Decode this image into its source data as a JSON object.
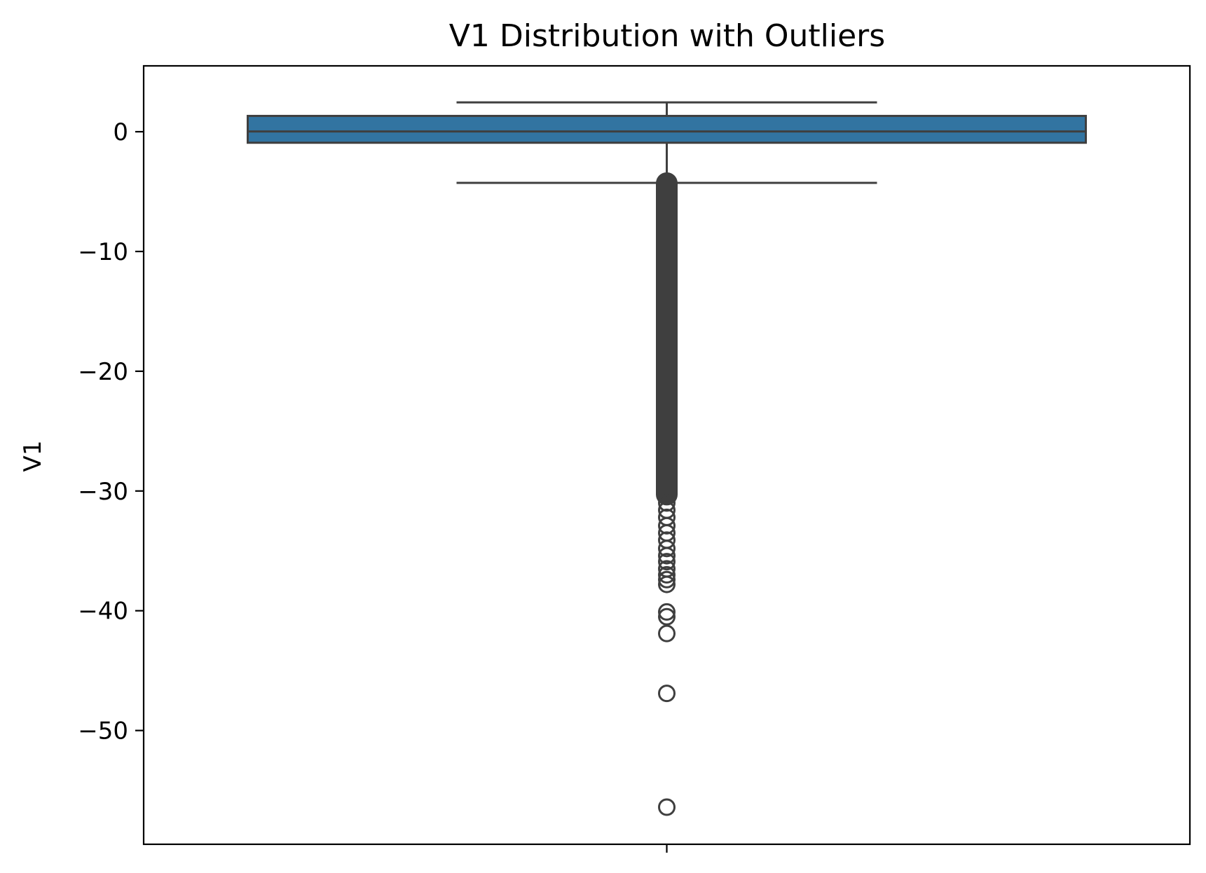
{
  "chart_data": {
    "type": "box",
    "title": "V1 Distribution with Outliers",
    "xlabel": "",
    "ylabel": "V1",
    "ylim": [
      -59.5,
      5.5
    ],
    "yticks": [
      0,
      -10,
      -20,
      -30,
      -40,
      -50
    ],
    "ytick_labels": [
      "0",
      "−10",
      "−20",
      "−30",
      "−40",
      "−50"
    ],
    "grid": false,
    "box": {
      "whisker_high": 2.45,
      "q3": 1.32,
      "median": 0.02,
      "q1": -0.92,
      "whisker_low": -4.27
    },
    "outliers_dense_range": [
      -30.3,
      -4.3
    ],
    "outliers": [
      -31,
      -31.6,
      -32.2,
      -32.9,
      -33.5,
      -34.1,
      -34.8,
      -35.4,
      -35.9,
      -36.5,
      -37,
      -37.4,
      -37.8,
      -40.1,
      -40.5,
      -41.9,
      -46.9,
      -56.4
    ],
    "colors": {
      "box_fill": "#3274a1",
      "line": "#3f3f3f"
    }
  }
}
